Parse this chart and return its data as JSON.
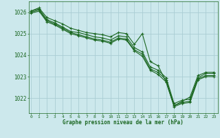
{
  "title": "Graphe pression niveau de la mer (hPa)",
  "background_color": "#cce8ec",
  "grid_color": "#aacdd4",
  "line_color": "#1a6620",
  "tick_color": "#1a6620",
  "x_ticks": [
    0,
    1,
    2,
    3,
    4,
    5,
    6,
    7,
    8,
    9,
    10,
    11,
    12,
    13,
    14,
    15,
    16,
    17,
    18,
    19,
    20,
    21,
    22,
    23
  ],
  "y_ticks": [
    1022,
    1023,
    1024,
    1025,
    1026
  ],
  "ylim": [
    1021.3,
    1026.5
  ],
  "xlim": [
    -0.3,
    23.5
  ],
  "lines": [
    [
      1026.05,
      1026.2,
      1025.75,
      1025.6,
      1025.45,
      1025.25,
      1025.15,
      1025.05,
      1025.0,
      1024.95,
      1024.85,
      1025.05,
      1025.0,
      1024.5,
      1025.0,
      1023.7,
      1023.5,
      1022.75,
      1021.65,
      1021.85,
      1022.05,
      1023.05,
      1023.2,
      1023.2
    ],
    [
      1026.05,
      1026.15,
      1025.65,
      1025.5,
      1025.3,
      1025.1,
      1025.05,
      1024.95,
      1024.85,
      1024.8,
      1024.7,
      1024.9,
      1024.85,
      1024.35,
      1024.15,
      1023.45,
      1023.3,
      1022.95,
      1021.75,
      1021.9,
      1021.95,
      1022.95,
      1023.15,
      1023.15
    ],
    [
      1026.0,
      1026.1,
      1025.6,
      1025.45,
      1025.25,
      1025.05,
      1024.95,
      1024.85,
      1024.75,
      1024.7,
      1024.6,
      1024.8,
      1024.75,
      1024.25,
      1024.05,
      1023.35,
      1023.2,
      1022.85,
      1021.65,
      1021.8,
      1021.85,
      1022.9,
      1023.05,
      1023.05
    ],
    [
      1025.95,
      1026.05,
      1025.55,
      1025.4,
      1025.2,
      1025.0,
      1024.9,
      1024.8,
      1024.7,
      1024.65,
      1024.55,
      1024.75,
      1024.7,
      1024.2,
      1023.95,
      1023.3,
      1023.1,
      1022.75,
      1021.6,
      1021.75,
      1021.8,
      1022.85,
      1023.0,
      1023.0
    ]
  ]
}
